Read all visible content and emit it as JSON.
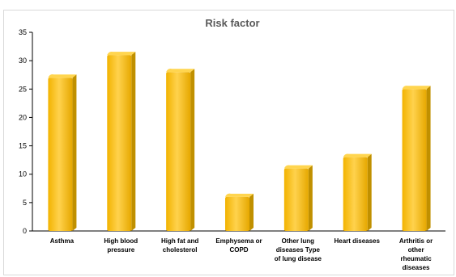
{
  "chart_data": {
    "type": "bar",
    "title": "Risk factor",
    "xlabel": "",
    "ylabel": "",
    "ylim": [
      0,
      35
    ],
    "yticks": [
      "0",
      "5",
      "10",
      "15",
      "20",
      "25",
      "30",
      "35"
    ],
    "categories": [
      "Asthma",
      "High blood pressure",
      "High fat and cholesterol",
      "Emphysema or COPD",
      "Other lung diseases Type of lung disease",
      "Heart diseases",
      "Arthritis or other rheumatic diseases"
    ],
    "category_lines": [
      [
        "Asthma"
      ],
      [
        "High blood",
        "pressure"
      ],
      [
        "High fat and",
        "cholesterol"
      ],
      [
        "Emphysema or",
        "COPD"
      ],
      [
        "Other lung",
        "diseases Type",
        "of lung disease"
      ],
      [
        "Heart diseases"
      ],
      [
        "Arthritis or",
        "other",
        "rheumatic",
        "diseases"
      ]
    ],
    "values": [
      27,
      31,
      28,
      6,
      11,
      13,
      25
    ],
    "grid": false,
    "legend": "none",
    "bar_color": "#FFC000",
    "bar_shade_color": "#C09000"
  }
}
